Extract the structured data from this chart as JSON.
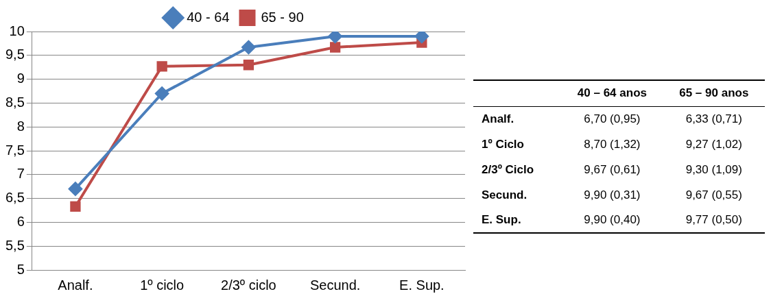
{
  "chart_data": {
    "type": "line",
    "categories": [
      "Analf.",
      "1º ciclo",
      "2/3º ciclo",
      "Secund.",
      "E. Sup."
    ],
    "series": [
      {
        "name": "40 - 64",
        "color": "#4a7ebb",
        "marker": "diamond",
        "values": [
          6.7,
          8.7,
          9.67,
          9.9,
          9.9
        ],
        "value_labels": [
          "6,70 (0,95)",
          "8,70 (1,32)",
          "9,67 (0,61)",
          "9,90 (0,31)",
          "9,90 (0,40)"
        ]
      },
      {
        "name": "65 - 90",
        "color": "#be4b48",
        "marker": "square",
        "values": [
          6.33,
          9.27,
          9.3,
          9.67,
          9.77
        ],
        "value_labels": [
          "6,33 (0,71)",
          "9,27 (1,02)",
          "9,30 (1,09)",
          "9,67 (0,55)",
          "9,77 (0,50)"
        ]
      }
    ],
    "annotations": [
      "40 – 64 anos",
      "65 – 90 anos",
      "Analf.",
      "1º Ciclo",
      "2/3º Ciclo",
      "Secund.",
      "E. Sup."
    ],
    "ylim": [
      5,
      10
    ],
    "yticks": [
      5,
      {
        "value": 5.5,
        "label": "5,5"
      },
      6,
      {
        "value": 6.5,
        "label": "6,5"
      },
      7,
      {
        "value": 7.5,
        "label": "7,5"
      },
      8,
      {
        "value": 8.5,
        "label": "8,5"
      },
      9,
      {
        "value": 9.5,
        "label": "9,5"
      },
      10
    ],
    "grid": "y",
    "legend": "top",
    "line_style": "solid"
  }
}
